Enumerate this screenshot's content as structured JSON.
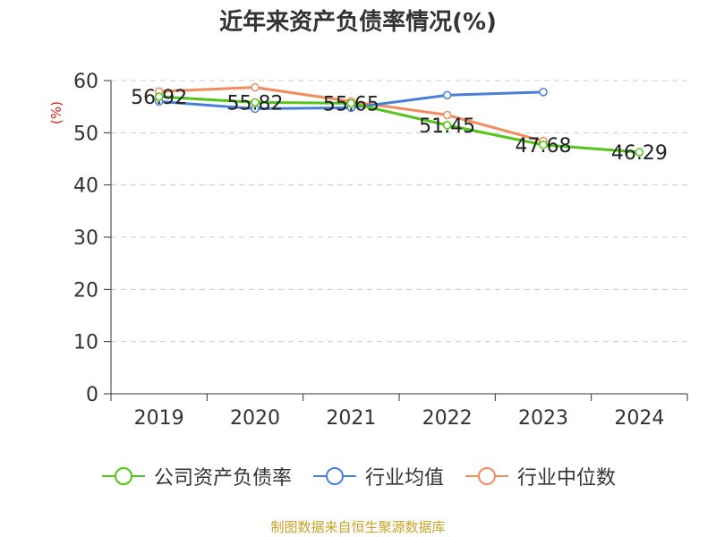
{
  "chart_data": {
    "type": "line",
    "title": "近年来资产负债率情况(%)",
    "ylabel": "(%)",
    "xlabel": "",
    "categories": [
      "2019",
      "2020",
      "2021",
      "2022",
      "2023",
      "2024"
    ],
    "ylim": [
      0,
      60
    ],
    "yticks": [
      0,
      10,
      20,
      30,
      40,
      50,
      60
    ],
    "grid": true,
    "legend_position": "bottom",
    "series": [
      {
        "name": "公司资产负债率",
        "color": "#52c41a",
        "values": [
          56.92,
          55.82,
          55.65,
          51.45,
          47.68,
          46.29
        ],
        "labels": [
          "56.92",
          "55.82",
          "55.65",
          "51.45",
          "47.68",
          "46.29"
        ]
      },
      {
        "name": "行业均值",
        "color": "#4a7fd9",
        "values": [
          56.0,
          54.6,
          54.8,
          57.2,
          57.8,
          null
        ]
      },
      {
        "name": "行业中位数",
        "color": "#f28c5e",
        "values": [
          57.9,
          58.7,
          56.0,
          53.4,
          48.4,
          null
        ]
      }
    ]
  },
  "source_note": "制图数据来自恒生聚源数据库"
}
